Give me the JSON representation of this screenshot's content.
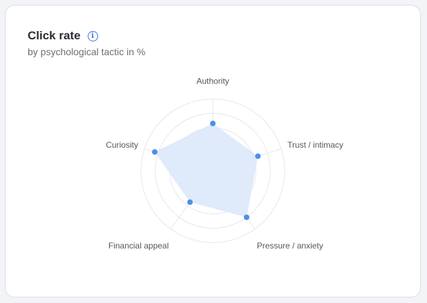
{
  "card": {
    "title": "Click rate",
    "info_icon": "info-circle-icon",
    "subtitle": "by psychological tactic in %"
  },
  "chart_data": {
    "type": "radar",
    "categories": [
      "Authority",
      "Trust / intimacy",
      "Pressure / anxiety",
      "Financial appeal",
      "Curiosity"
    ],
    "values": [
      66,
      66,
      80,
      54,
      85
    ],
    "ylim": [
      0,
      100
    ],
    "rings": 5,
    "grid": true,
    "fill_color": "#dce8fa",
    "point_color": "#4f8fe8"
  }
}
